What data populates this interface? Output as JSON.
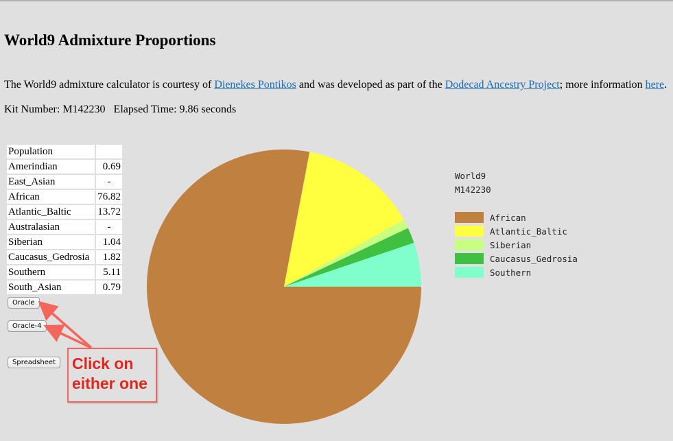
{
  "page": {
    "title": "World9 Admixture Proportions",
    "intro": {
      "text1": "The World9 admixture calculator is courtesy of ",
      "link1": "Dienekes Pontikos",
      "text2": " and was developed as part of the ",
      "link2": "Dodecad Ancestry Project",
      "text3": "; more information ",
      "link3": "here",
      "text4": "."
    },
    "kit_label": "Kit Number: M142230",
    "elapsed_label": "Elapsed Time: 9.86 seconds"
  },
  "table": {
    "header": "Population",
    "rows": [
      {
        "name": "Amerindian",
        "value": "0.69"
      },
      {
        "name": "East_Asian",
        "value": "-"
      },
      {
        "name": "African",
        "value": "76.82"
      },
      {
        "name": "Atlantic_Baltic",
        "value": "13.72"
      },
      {
        "name": "Australasian",
        "value": "-"
      },
      {
        "name": "Siberian",
        "value": "1.04"
      },
      {
        "name": "Caucasus_Gedrosia",
        "value": "1.82"
      },
      {
        "name": "Southern",
        "value": "5.11"
      },
      {
        "name": "South_Asian",
        "value": "0.79"
      }
    ]
  },
  "buttons": {
    "oracle": "Oracle",
    "oracle4": "Oracle-4",
    "spreadsheet": "Spreadsheet"
  },
  "annotation": {
    "line1": "Click on",
    "line2": "either one",
    "color": "#e3261d",
    "border_color": "#f2665c"
  },
  "legend": {
    "line1": "World9",
    "line2": "M142230"
  },
  "chart_data": {
    "type": "pie",
    "title": "World9",
    "subtitle": "M142230",
    "legend_position": "right",
    "categories": [
      "African",
      "Atlantic_Baltic",
      "Siberian",
      "Caucasus_Gedrosia",
      "Southern"
    ],
    "values": [
      76.82,
      13.72,
      1.04,
      1.82,
      5.11
    ],
    "colors": [
      "#c08040",
      "#ffff40",
      "#c8ff80",
      "#40c040",
      "#80ffcc"
    ]
  }
}
